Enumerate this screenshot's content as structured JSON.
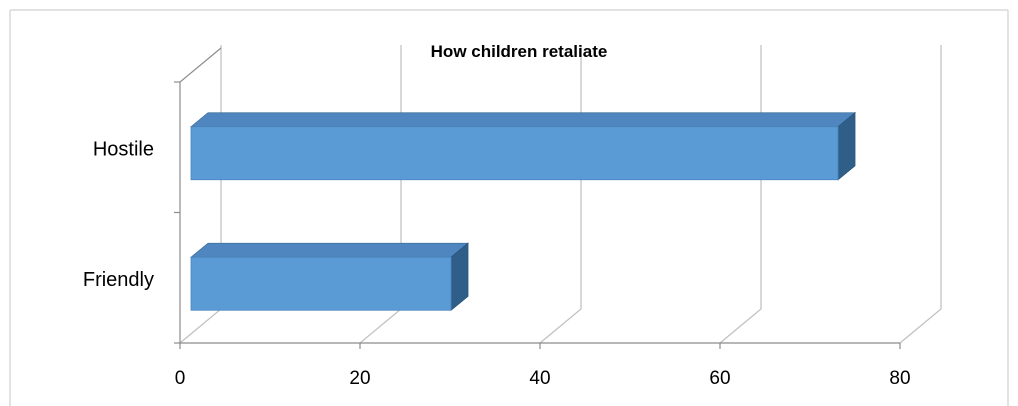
{
  "chart_data": {
    "type": "bar",
    "orientation": "horizontal",
    "three_d": true,
    "title": "How children retaliate",
    "categories": [
      "Friendly",
      "Hostile"
    ],
    "values": [
      30,
      73
    ],
    "xlim": [
      0,
      80
    ],
    "x_ticks": [
      "0",
      "20",
      "40",
      "60",
      "80"
    ],
    "xlabel": "",
    "ylabel": "",
    "grid": true,
    "legend": "none",
    "colors": {
      "bar_front": "#5b9bd5",
      "bar_top": "#4f86bf",
      "bar_side": "#2f5f88",
      "grid": "#bfbfbf",
      "axis": "#8c8c8c",
      "frame": "#d9d9d9"
    }
  }
}
